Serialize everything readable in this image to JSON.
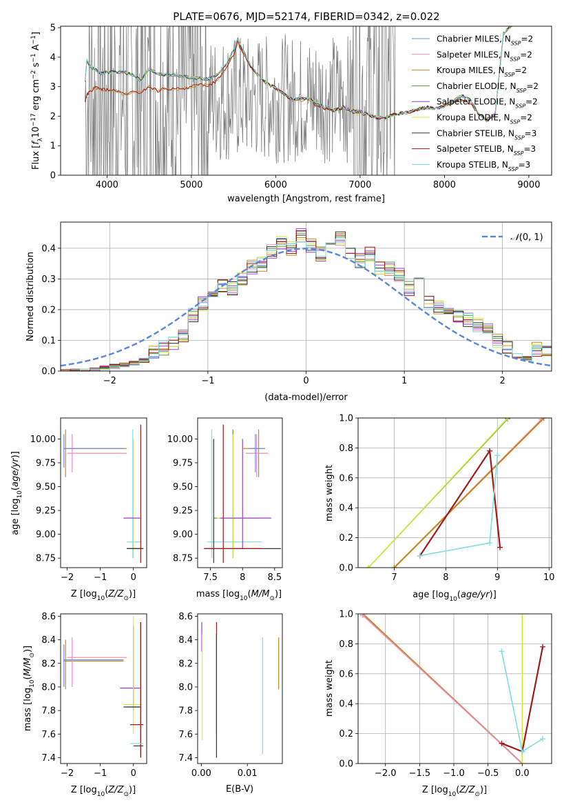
{
  "figure": {
    "title": "PLATE=0676, MJD=52174, FIBERID=0342, z=0.022"
  },
  "models": [
    {
      "name": "Chabrier MILES",
      "nssp": "2",
      "color": "#6f8fd8"
    },
    {
      "name": "Salpeter MILES",
      "nssp": "2",
      "color": "#e98fc0"
    },
    {
      "name": "Kroupa MILES",
      "nssp": "2",
      "color": "#c8881f"
    },
    {
      "name": "Chabrier ELODIE",
      "nssp": "2",
      "color": "#4f9a3e"
    },
    {
      "name": "Salpeter ELODIE",
      "nssp": "2",
      "color": "#9b3fd0"
    },
    {
      "name": "Kroupa ELODIE",
      "nssp": "2",
      "color": "#d8ea3c"
    },
    {
      "name": "Chabrier STELIB",
      "nssp": "3",
      "color": "#333333"
    },
    {
      "name": "Salpeter STELIB",
      "nssp": "3",
      "color": "#a01818"
    },
    {
      "name": "Kroupa STELIB",
      "nssp": "3",
      "color": "#7fdde0"
    }
  ],
  "chart_data": [
    {
      "type": "line",
      "name": "spectrum",
      "xlabel": "wavelength [Angstrom, rest frame]",
      "ylabel": "Flux [f_λ 10^-17 erg cm^-2 s^-1 A^-1]",
      "xlim": [
        3450,
        9270
      ],
      "ylim": [
        0,
        5.05
      ],
      "xticks": [
        4000,
        5000,
        6000,
        7000,
        8000,
        9000
      ],
      "yticks": [
        0,
        1,
        2,
        3,
        4,
        5
      ],
      "grid": false,
      "legend_loc": "upper right",
      "model_continuum": {
        "x": [
          3740,
          3760,
          3800,
          3850,
          3900,
          3950,
          4000,
          4100,
          4200,
          4300,
          4400,
          4500,
          4600,
          4700,
          4800,
          4900,
          5000,
          5100,
          5200,
          5300,
          5400,
          5500,
          5550,
          5600,
          5700,
          5800,
          5900,
          6000,
          6100,
          6200,
          6300,
          6400,
          6500,
          6600,
          6700,
          6800,
          6900,
          7000,
          7100,
          7200,
          7300,
          7400,
          7500,
          7600,
          7700,
          7800,
          7900,
          8000,
          8100,
          8200,
          8300,
          8400,
          8500,
          8600,
          8700,
          8800,
          8900
        ],
        "y_blue": [
          3.2,
          3.9,
          3.7,
          3.6,
          3.5,
          3.45,
          3.5,
          3.5,
          3.5,
          3.4,
          3.2,
          3.6,
          3.45,
          3.4,
          3.4,
          3.35,
          3.3,
          3.3,
          3.25,
          3.4,
          3.7,
          4.25,
          4.6,
          4.3,
          3.7,
          3.35,
          3.1,
          2.95,
          2.75,
          2.55,
          2.6,
          2.6,
          2.4,
          2.3,
          2.2,
          2.3,
          2.2,
          2.15,
          2.05,
          1.95,
          1.95,
          2.05,
          2.1,
          2.15,
          2.25,
          2.3,
          2.25,
          2.35,
          2.5,
          2.7,
          2.55,
          2.1,
          1.85,
          2.05,
          4.8,
          5.1,
          5.1
        ],
        "y_orange": [
          2.5,
          2.7,
          2.85,
          2.95,
          2.95,
          2.9,
          2.9,
          2.85,
          2.75,
          2.8,
          2.8,
          3.0,
          2.85,
          2.95,
          2.9,
          2.95,
          3.0,
          3.05,
          3.05,
          3.2,
          3.6,
          4.1,
          4.5,
          4.2,
          3.7,
          3.35,
          3.1,
          2.95,
          2.75,
          2.55,
          2.55,
          2.55,
          2.35,
          2.25,
          2.2,
          2.3,
          2.15,
          2.1,
          2.05,
          1.95,
          1.95,
          2.05,
          2.1,
          2.15,
          2.25,
          2.3,
          2.25,
          2.35,
          2.45,
          2.55,
          2.45,
          2.1,
          1.9,
          2.05,
          4.8,
          5.1,
          5.1
        ]
      },
      "observed_data_range": [
        3740,
        7420
      ]
    },
    {
      "type": "line",
      "name": "residual-distribution",
      "xlabel": "(data-model)/error",
      "ylabel": "Normed distribution",
      "xlim": [
        -2.5,
        2.5
      ],
      "ylim": [
        0,
        0.485
      ],
      "xticks": [
        -2,
        -1,
        0,
        1,
        2
      ],
      "yticks": [
        0.0,
        0.1,
        0.2,
        0.3,
        0.4
      ],
      "grid": true,
      "legend_loc": "upper right",
      "reference_curve": "N(0,1)",
      "hist_bins": [
        -2.5,
        -2.4,
        -2.3,
        -2.2,
        -2.1,
        -2.0,
        -1.9,
        -1.8,
        -1.7,
        -1.6,
        -1.5,
        -1.4,
        -1.3,
        -1.2,
        -1.1,
        -1.0,
        -0.9,
        -0.8,
        -0.7,
        -0.6,
        -0.5,
        -0.4,
        -0.3,
        -0.2,
        -0.1,
        0.0,
        0.1,
        0.2,
        0.3,
        0.4,
        0.5,
        0.6,
        0.7,
        0.8,
        0.9,
        1.0,
        1.1,
        1.2,
        1.3,
        1.4,
        1.5,
        1.6,
        1.7,
        1.8,
        1.9,
        2.0,
        2.1,
        2.2,
        2.3,
        2.4,
        2.5
      ],
      "hist_values": [
        0.0,
        0.0,
        0.0,
        0.005,
        0.01,
        0.015,
        0.02,
        0.025,
        0.035,
        0.06,
        0.075,
        0.09,
        0.12,
        0.18,
        0.22,
        0.26,
        0.28,
        0.27,
        0.3,
        0.34,
        0.35,
        0.39,
        0.42,
        0.4,
        0.44,
        0.41,
        0.38,
        0.4,
        0.43,
        0.39,
        0.36,
        0.38,
        0.34,
        0.33,
        0.31,
        0.27,
        0.28,
        0.23,
        0.21,
        0.19,
        0.18,
        0.17,
        0.15,
        0.13,
        0.1,
        0.08,
        0.05,
        0.04,
        0.07,
        0.06
      ]
    },
    {
      "type": "scatter",
      "name": "age-vs-Z",
      "xlabel": "Z [log10(Z/Z⊙)]",
      "ylabel": "age  [log10(age/yr)]",
      "xlim": [
        -2.2,
        0.4
      ],
      "ylim": [
        8.65,
        10.22
      ],
      "xticks": [
        -2,
        -1,
        0
      ],
      "yticks": [
        8.75,
        9.0,
        9.25,
        9.5,
        9.75,
        10.0
      ]
    },
    {
      "type": "scatter",
      "name": "age-vs-mass",
      "xlabel": "mass [log10(M/M⊙)]",
      "ylabel": "",
      "xlim": [
        7.3,
        8.62
      ],
      "ylim": [
        8.65,
        10.22
      ],
      "xticks": [
        7.5,
        8.0,
        8.5
      ],
      "yticks": [
        8.75,
        9.0,
        9.25,
        9.5,
        9.75,
        10.0
      ]
    },
    {
      "type": "line",
      "name": "mass-weight-vs-age",
      "xlabel": "age  [log10(age/yr)]",
      "ylabel": "mass weight",
      "xlim": [
        6.3,
        10.05
      ],
      "ylim": [
        0,
        1
      ],
      "xticks": [
        7,
        8,
        9,
        10
      ],
      "yticks": [
        0.0,
        0.2,
        0.4,
        0.6,
        0.8,
        1.0
      ],
      "grid": true,
      "series": [
        {
          "model": 0,
          "x": [
            7.0,
            9.9
          ],
          "y": [
            0.0,
            1.0
          ]
        },
        {
          "model": 1,
          "x": [
            7.0,
            9.85
          ],
          "y": [
            0.0,
            0.99
          ]
        },
        {
          "model": 2,
          "x": [
            7.0,
            9.9
          ],
          "y": [
            0.0,
            1.0
          ]
        },
        {
          "model": 3,
          "x": [
            6.5,
            9.2
          ],
          "y": [
            0.0,
            0.995
          ]
        },
        {
          "model": 5,
          "x": [
            6.5,
            9.2
          ],
          "y": [
            0.0,
            1.0
          ]
        },
        {
          "model": 7,
          "x": [
            7.5,
            8.85,
            9.05
          ],
          "y": [
            0.08,
            0.78,
            0.135
          ]
        },
        {
          "model": 8,
          "x": [
            7.5,
            8.85,
            9.0
          ],
          "y": [
            0.08,
            0.165,
            0.75
          ]
        }
      ]
    },
    {
      "type": "scatter",
      "name": "mass-vs-Z",
      "xlabel": "Z [log10(Z/Z⊙)]",
      "ylabel": "mass [log10(M/M⊙)]",
      "xlim": [
        -2.2,
        0.4
      ],
      "ylim": [
        7.35,
        8.62
      ],
      "xticks": [
        -2,
        -1,
        0
      ],
      "yticks": [
        7.4,
        7.6,
        7.8,
        8.0,
        8.2,
        8.4,
        8.6
      ]
    },
    {
      "type": "scatter",
      "name": "mass-vs-EBV",
      "xlabel": "E(B-V)",
      "ylabel": "",
      "xlim": [
        -0.0008,
        0.0176
      ],
      "ylim": [
        7.35,
        8.62
      ],
      "xticks": [
        0.0,
        0.01
      ],
      "yticks": [
        7.4,
        7.6,
        7.8,
        8.0,
        8.2,
        8.4,
        8.6
      ]
    },
    {
      "type": "line",
      "name": "mass-weight-vs-Z",
      "xlabel": "Z [log10(Z/Z⊙)]",
      "ylabel": "mass weight",
      "xlim": [
        -2.4,
        0.43
      ],
      "ylim": [
        0,
        1
      ],
      "xticks": [
        -2.0,
        -1.5,
        -1.0,
        -0.5,
        0.0
      ],
      "yticks": [
        0.0,
        0.2,
        0.4,
        0.6,
        0.8,
        1.0
      ],
      "grid": true,
      "series": [
        {
          "model": 2,
          "x": [
            -2.33,
            0.0
          ],
          "y": [
            1.0,
            0.0
          ]
        },
        {
          "model": 1,
          "x": [
            -2.33,
            0.0
          ],
          "y": [
            0.99,
            0.0
          ]
        },
        {
          "model": 5,
          "x": [
            0.0,
            0.0
          ],
          "y": [
            0.0,
            1.0
          ]
        },
        {
          "model": 7,
          "x": [
            -0.3,
            0.0,
            0.3
          ],
          "y": [
            0.135,
            0.08,
            0.78
          ]
        },
        {
          "model": 8,
          "x": [
            -0.3,
            0.0,
            0.3
          ],
          "y": [
            0.75,
            0.08,
            0.165
          ]
        }
      ]
    }
  ]
}
